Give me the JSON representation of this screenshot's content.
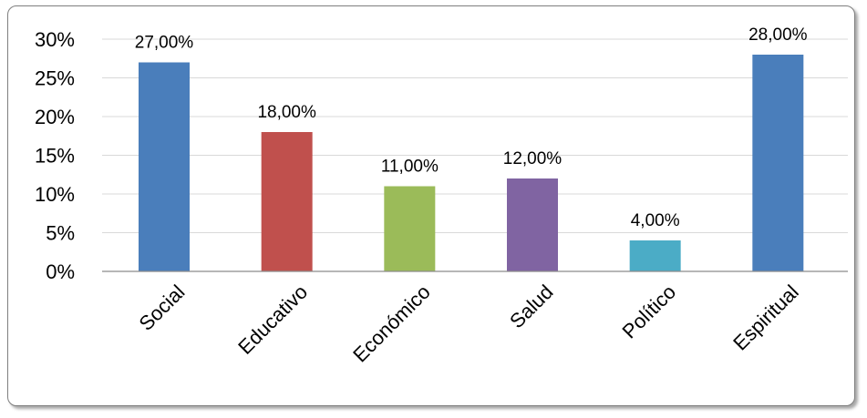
{
  "chart_data": {
    "type": "bar",
    "categories": [
      "Social",
      "Educativo",
      "Económico",
      "Salud",
      "Político",
      "Espiritual"
    ],
    "values": [
      27,
      18,
      11,
      12,
      4,
      28
    ],
    "data_labels": [
      "27,00%",
      "18,00%",
      "11,00%",
      "12,00%",
      "4,00%",
      "28,00%"
    ],
    "bar_colors": [
      "#4a7ebb",
      "#c0504d",
      "#9bbb59",
      "#8064a2",
      "#4bacc6",
      "#4a7ebb"
    ],
    "yticks": [
      0,
      5,
      10,
      15,
      20,
      25,
      30
    ],
    "ytick_labels": [
      "0%",
      "5%",
      "10%",
      "15%",
      "20%",
      "25%",
      "30%"
    ],
    "ylim": [
      0,
      30
    ],
    "grid": true,
    "legend": false,
    "title": "",
    "xlabel": "",
    "ylabel": ""
  }
}
